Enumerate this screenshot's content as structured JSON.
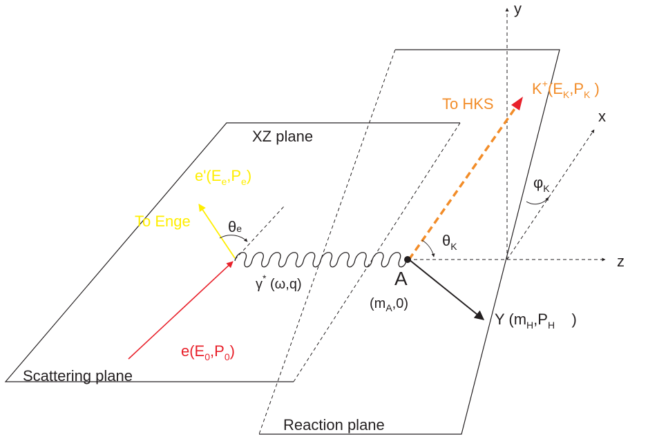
{
  "labels": {
    "y_axis": "y",
    "x_axis": "x",
    "z_axis": "z",
    "xz_plane": "XZ plane",
    "scattering_plane": "Scattering plane",
    "reaction_plane": "Reaction plane",
    "to_hks": "To HKS",
    "to_enge": "To Enge",
    "theta_e": "θ",
    "theta_e_sub": "e",
    "theta_k": "θ",
    "theta_k_sub": "K",
    "phi_k": "φ",
    "phi_k_sub": "K",
    "target": "A",
    "target_kin_open": "(m",
    "target_kin_sub": "A",
    "target_kin_close": ",0)",
    "photon": "γ",
    "photon_sup": "*",
    "photon_kin": " (ω,q)",
    "beam_e": "e(E",
    "beam_e_sub1": "0",
    "beam_e_mid": ",P",
    "beam_e_sub2": "0",
    "beam_e_close": ")",
    "scat_e": "e'(E",
    "scat_e_sub1": "e",
    "scat_e_mid": ",P",
    "scat_e_sub2": "e",
    "scat_e_close": ")",
    "kaon": "K",
    "kaon_sup": "+",
    "kaon_open": "(E",
    "kaon_sub1": "K",
    "kaon_mid": ",P",
    "kaon_sub2": "K",
    "kaon_close": " )",
    "hyper": "Y (m",
    "hyper_sub1": "H",
    "hyper_mid": ",P",
    "hyper_sub2": "H",
    "hyper_close": "    )"
  },
  "colors": {
    "beam": "#e8202a",
    "scattered": "#ffee00",
    "kaon": "#f28c28",
    "line": "#231f20"
  }
}
